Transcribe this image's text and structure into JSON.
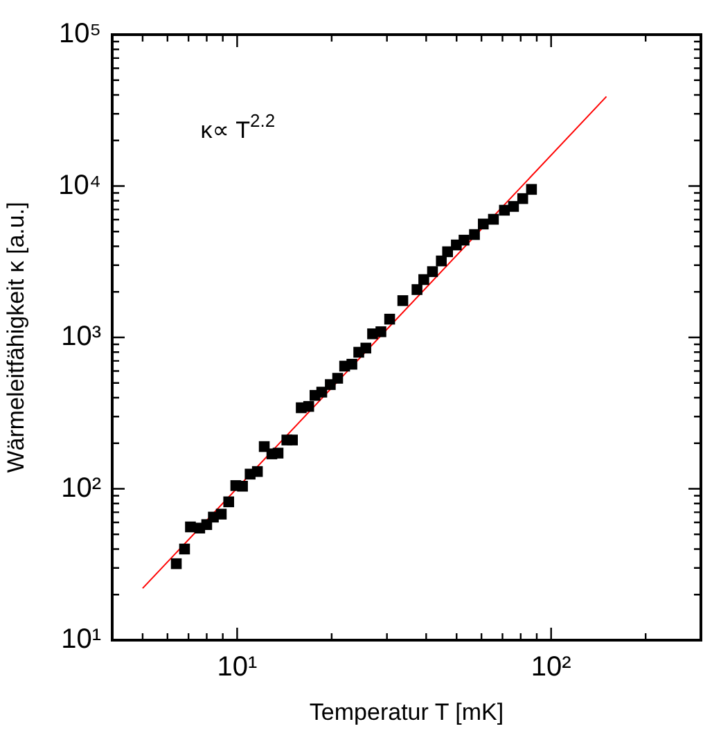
{
  "chart_data": {
    "type": "scatter",
    "xlabel": "Temperatur T [mK]",
    "ylabel": "Wärmeleitfähigkeit κ [a.u.]",
    "annotations": [
      "κ∝ T$^{2.2}$"
    ],
    "log": "xy",
    "grid": false,
    "marker": "square",
    "xlim": [
      4,
      300
    ],
    "ylim": [
      10,
      100000
    ],
    "xticks": [
      {
        "value": 4,
        "label": null
      },
      {
        "value": 5,
        "label": null
      },
      {
        "value": 6,
        "label": null
      },
      {
        "value": 7,
        "label": null
      },
      {
        "value": 8,
        "label": null
      },
      {
        "value": 9,
        "label": null
      },
      {
        "value": 10,
        "label": "10¹"
      },
      {
        "value": 20,
        "label": null
      },
      {
        "value": 30,
        "label": null
      },
      {
        "value": 40,
        "label": null
      },
      {
        "value": 50,
        "label": null
      },
      {
        "value": 60,
        "label": null
      },
      {
        "value": 70,
        "label": null
      },
      {
        "value": 80,
        "label": null
      },
      {
        "value": 90,
        "label": null
      },
      {
        "value": 100,
        "label": "10²"
      },
      {
        "value": 200,
        "label": null
      },
      {
        "value": 300,
        "label": null
      }
    ],
    "yticks": [
      {
        "value": 10,
        "label": "10¹"
      },
      {
        "value": 20,
        "label": null
      },
      {
        "value": 30,
        "label": null
      },
      {
        "value": 40,
        "label": null
      },
      {
        "value": 50,
        "label": null
      },
      {
        "value": 60,
        "label": null
      },
      {
        "value": 70,
        "label": null
      },
      {
        "value": 80,
        "label": null
      },
      {
        "value": 90,
        "label": null
      },
      {
        "value": 100,
        "label": "10²"
      },
      {
        "value": 200,
        "label": null
      },
      {
        "value": 300,
        "label": null
      },
      {
        "value": 400,
        "label": null
      },
      {
        "value": 500,
        "label": null
      },
      {
        "value": 600,
        "label": null
      },
      {
        "value": 700,
        "label": null
      },
      {
        "value": 800,
        "label": null
      },
      {
        "value": 900,
        "label": null
      },
      {
        "value": 1000,
        "label": "10³"
      },
      {
        "value": 2000,
        "label": null
      },
      {
        "value": 3000,
        "label": null
      },
      {
        "value": 4000,
        "label": null
      },
      {
        "value": 5000,
        "label": null
      },
      {
        "value": 6000,
        "label": null
      },
      {
        "value": 7000,
        "label": null
      },
      {
        "value": 8000,
        "label": null
      },
      {
        "value": 9000,
        "label": null
      },
      {
        "value": 10000,
        "label": "10⁴"
      },
      {
        "value": 20000,
        "label": null
      },
      {
        "value": 30000,
        "label": null
      },
      {
        "value": 40000,
        "label": null
      },
      {
        "value": 50000,
        "label": null
      },
      {
        "value": 60000,
        "label": null
      },
      {
        "value": 70000,
        "label": null
      },
      {
        "value": 80000,
        "label": null
      },
      {
        "value": 90000,
        "label": null
      },
      {
        "value": 100000,
        "label": "10⁵"
      }
    ],
    "series": [
      {
        "color": "#000000",
        "x": [
          6.4,
          6.8,
          7.1,
          7.6,
          8.0,
          8.4,
          8.9,
          9.4,
          9.9,
          10.4,
          11.0,
          11.6,
          12.2,
          12.9,
          13.5,
          14.4,
          15.0,
          16.0,
          16.9,
          17.7,
          18.6,
          19.8,
          20.9,
          22.0,
          23.2,
          24.4,
          25.7,
          27.0,
          28.7,
          30.6,
          33.7,
          37.4,
          39.3,
          41.9,
          44.7,
          46.8,
          49.9,
          52.8,
          57.0,
          60.8,
          65.5,
          71.0,
          75.9,
          81.2,
          86.6
        ],
        "values": [
          32,
          40,
          56,
          55,
          58,
          65,
          68,
          82,
          105,
          104,
          125,
          130,
          190,
          170,
          172,
          210,
          210,
          343,
          350,
          414,
          435,
          488,
          537,
          646,
          665,
          798,
          850,
          1056,
          1090,
          1320,
          1750,
          2070,
          2410,
          2720,
          3200,
          3680,
          4080,
          4390,
          4780,
          5610,
          6030,
          6920,
          7330,
          8260,
          9500
        ]
      },
      {
        "type": "line",
        "color": "#ff0000",
        "marker": "none",
        "x": [
          5,
          150
        ],
        "values": [
          22,
          39000
        ]
      }
    ]
  }
}
